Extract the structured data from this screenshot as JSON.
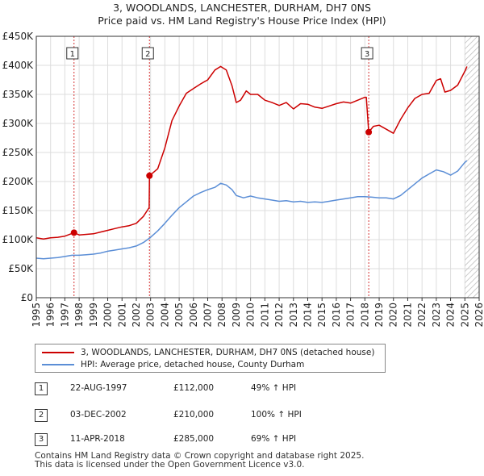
{
  "title": {
    "line1": "3, WOODLANDS, LANCHESTER, DURHAM, DH7 0NS",
    "line2": "Price paid vs. HM Land Registry's House Price Index (HPI)"
  },
  "colors": {
    "price_line": "#cc0000",
    "hpi_line": "#5b8ed6",
    "marker_line": "#cc0000"
  },
  "chart_data": {
    "type": "line",
    "xlim": [
      1995,
      2026
    ],
    "ylim": [
      0,
      450000
    ],
    "xticks": [
      1995,
      1996,
      1997,
      1998,
      1999,
      2000,
      2001,
      2002,
      2003,
      2004,
      2005,
      2006,
      2007,
      2008,
      2009,
      2010,
      2011,
      2012,
      2013,
      2014,
      2015,
      2016,
      2017,
      2018,
      2019,
      2020,
      2021,
      2022,
      2023,
      2024,
      2025,
      2026
    ],
    "yticks": [
      {
        "value": 0,
        "label": "£0"
      },
      {
        "value": 50000,
        "label": "£50K"
      },
      {
        "value": 100000,
        "label": "£100K"
      },
      {
        "value": 150000,
        "label": "£150K"
      },
      {
        "value": 200000,
        "label": "£200K"
      },
      {
        "value": 250000,
        "label": "£250K"
      },
      {
        "value": 300000,
        "label": "£300K"
      },
      {
        "value": 350000,
        "label": "£350K"
      },
      {
        "value": 400000,
        "label": "£400K"
      },
      {
        "value": 450000,
        "label": "£450K"
      }
    ],
    "grid": true,
    "forecast_hatch_from": 2025.0,
    "series": [
      {
        "name": "3, WOODLANDS, LANCHESTER, DURHAM, DH7 0NS (detached house)",
        "color": "#cc0000",
        "x": [
          1995.0,
          1995.5,
          1996.0,
          1996.5,
          1997.0,
          1997.64,
          1998.0,
          1998.5,
          1999.0,
          1999.5,
          2000.0,
          2000.5,
          2001.0,
          2001.5,
          2002.0,
          2002.5,
          2002.9,
          2002.92,
          2003.5,
          2004.0,
          2004.5,
          2005.0,
          2005.5,
          2006.0,
          2006.5,
          2007.0,
          2007.5,
          2007.9,
          2008.3,
          2008.7,
          2009.0,
          2009.3,
          2009.7,
          2010.0,
          2010.5,
          2011.0,
          2011.5,
          2012.0,
          2012.5,
          2013.0,
          2013.5,
          2014.0,
          2014.5,
          2015.0,
          2015.5,
          2016.0,
          2016.5,
          2017.0,
          2017.5,
          2018.0,
          2018.1,
          2018.27,
          2018.6,
          2019.0,
          2019.5,
          2020.0,
          2020.5,
          2021.0,
          2021.5,
          2022.0,
          2022.5,
          2023.0,
          2023.3,
          2023.6,
          2024.0,
          2024.5,
          2025.0,
          2025.15
        ],
        "y": [
          103000,
          101000,
          103000,
          104000,
          106000,
          112000,
          108000,
          109000,
          110000,
          113000,
          116000,
          119000,
          122000,
          124000,
          128000,
          140000,
          155000,
          210000,
          222000,
          258000,
          305000,
          330000,
          352000,
          360000,
          368000,
          375000,
          392000,
          398000,
          392000,
          365000,
          336000,
          340000,
          356000,
          350000,
          350000,
          340000,
          336000,
          331000,
          336000,
          325000,
          334000,
          333000,
          328000,
          326000,
          330000,
          334000,
          337000,
          335000,
          340000,
          345000,
          345000,
          285000,
          295000,
          297000,
          290000,
          283000,
          307000,
          327000,
          343000,
          350000,
          352000,
          374000,
          377000,
          354000,
          357000,
          366000,
          390000,
          398000
        ]
      },
      {
        "name": "HPI: Average price, detached house, County Durham",
        "color": "#5b8ed6",
        "x": [
          1995.0,
          1995.5,
          1996.0,
          1996.5,
          1997.0,
          1997.5,
          1998.0,
          1998.5,
          1999.0,
          1999.5,
          2000.0,
          2000.5,
          2001.0,
          2001.5,
          2002.0,
          2002.5,
          2003.0,
          2003.5,
          2004.0,
          2004.5,
          2005.0,
          2005.5,
          2006.0,
          2006.5,
          2007.0,
          2007.5,
          2007.9,
          2008.3,
          2008.7,
          2009.0,
          2009.5,
          2010.0,
          2010.5,
          2011.0,
          2011.5,
          2012.0,
          2012.5,
          2013.0,
          2013.5,
          2014.0,
          2014.5,
          2015.0,
          2015.5,
          2016.0,
          2016.5,
          2017.0,
          2017.5,
          2018.0,
          2018.5,
          2019.0,
          2019.5,
          2020.0,
          2020.5,
          2021.0,
          2021.5,
          2022.0,
          2022.5,
          2023.0,
          2023.5,
          2024.0,
          2024.5,
          2025.0,
          2025.15
        ],
        "y": [
          68000,
          67000,
          68000,
          69000,
          71000,
          73000,
          73000,
          74000,
          75000,
          77000,
          80000,
          82000,
          84000,
          86000,
          89000,
          95000,
          104000,
          115000,
          128000,
          142000,
          155000,
          165000,
          175000,
          181000,
          186000,
          190000,
          197000,
          194000,
          186000,
          176000,
          172000,
          175000,
          172000,
          170000,
          168000,
          166000,
          167000,
          165000,
          166000,
          164000,
          165000,
          164000,
          166000,
          168000,
          170000,
          172000,
          174000,
          174000,
          173000,
          172000,
          172000,
          170000,
          176000,
          186000,
          196000,
          206000,
          213000,
          220000,
          217000,
          211000,
          218000,
          233000,
          236000
        ]
      }
    ],
    "sales": [
      {
        "label": "1",
        "x": 1997.64,
        "y": 112000
      },
      {
        "label": "2",
        "x": 2002.92,
        "y": 210000
      },
      {
        "label": "3",
        "x": 2018.27,
        "y": 285000
      }
    ]
  },
  "legend": {
    "price_label": "3, WOODLANDS, LANCHESTER, DURHAM, DH7 0NS (detached house)",
    "hpi_label": "HPI: Average price, detached house, County Durham"
  },
  "transactions": [
    {
      "num": "1",
      "date": "22-AUG-1997",
      "price": "£112,000",
      "hpi": "49% ↑ HPI"
    },
    {
      "num": "2",
      "date": "03-DEC-2002",
      "price": "£210,000",
      "hpi": "100% ↑ HPI"
    },
    {
      "num": "3",
      "date": "11-APR-2018",
      "price": "£285,000",
      "hpi": "69% ↑ HPI"
    }
  ],
  "footer": {
    "line1": "Contains HM Land Registry data © Crown copyright and database right 2025.",
    "line2": "This data is licensed under the Open Government Licence v3.0."
  }
}
